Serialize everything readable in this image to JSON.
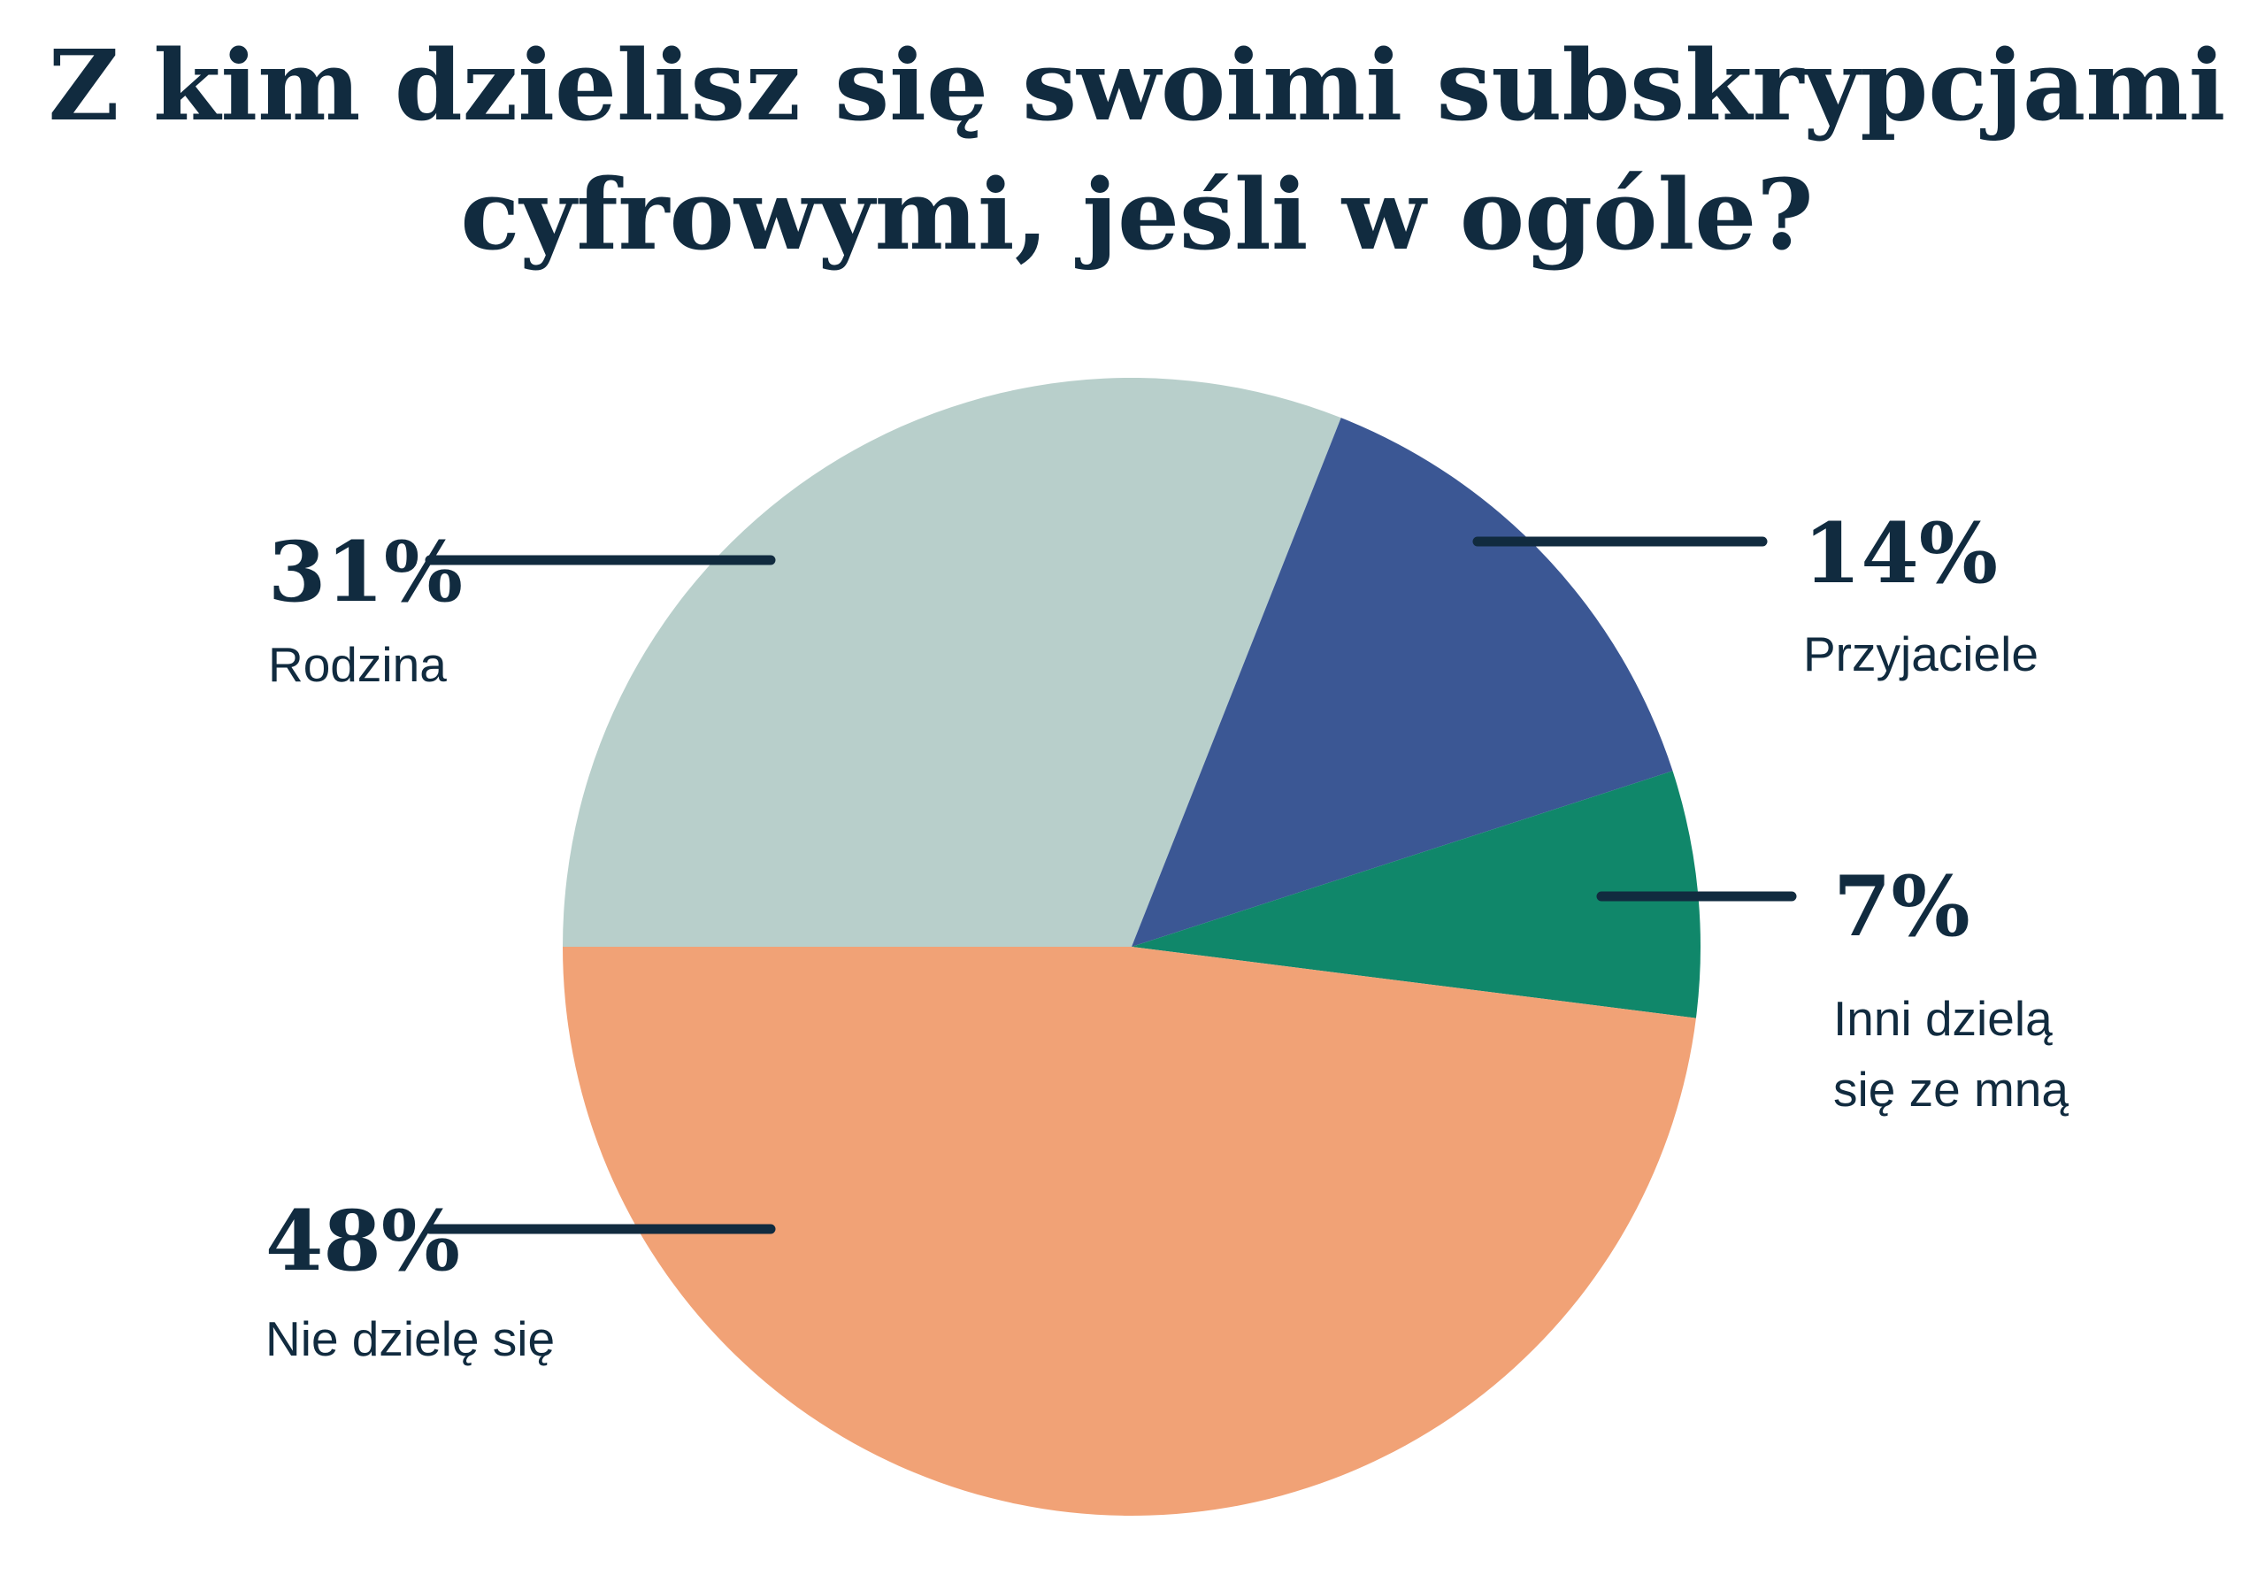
{
  "title": {
    "line1": "Z kim dzielisz się swoimi subskrypcjami",
    "line2": "cyfrowymi, jeśli w ogóle?"
  },
  "colors": {
    "background": "#ffffff",
    "text": "#112b3f",
    "leader_line": "#112b3f"
  },
  "chart_data": {
    "type": "pie",
    "title": "Z kim dzielisz się swoimi subskrypcjami cyfrowymi, jeśli w ogóle?",
    "units": "percent",
    "total": 100,
    "start_angle_clockwise_from_north_deg": 270,
    "direction": "clockwise",
    "grid": false,
    "legend_position": "callout-labels",
    "slices": [
      {
        "label": "Rodzina",
        "label_lines": [
          "Rodzina"
        ],
        "value": 31,
        "pct_text": "31%",
        "color": "#b8cfcb"
      },
      {
        "label": "Przyjaciele",
        "label_lines": [
          "Przyjaciele"
        ],
        "value": 14,
        "pct_text": "14%",
        "color": "#3b5794"
      },
      {
        "label": "Inni dzielą się ze mną",
        "label_lines": [
          "Inni dzielą",
          "się ze mną"
        ],
        "value": 7,
        "pct_text": "7%",
        "color": "#10876a"
      },
      {
        "label": "Nie dzielę się",
        "label_lines": [
          "Nie dzielę się"
        ],
        "value": 48,
        "pct_text": "48%",
        "color": "#f1a276"
      }
    ]
  }
}
